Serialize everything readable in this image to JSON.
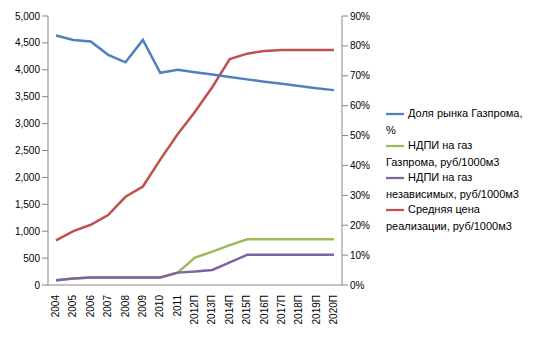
{
  "chart_data": {
    "type": "line",
    "categories": [
      "2004",
      "2005",
      "2006",
      "2007",
      "2008",
      "2009",
      "2010",
      "2011",
      "2012П",
      "2013П",
      "2014П",
      "2015П",
      "2016П",
      "2017П",
      "2018П",
      "2019П",
      "2020П"
    ],
    "series": [
      {
        "name": "Средняя цена реализации, руб/1000м3",
        "color": "#c0504d",
        "values": [
          830,
          1000,
          1120,
          1300,
          1640,
          1830,
          2330,
          2800,
          3220,
          3680,
          4200,
          4300,
          4350,
          4370,
          4370,
          4370,
          4370
        ]
      },
      {
        "name": "НДПИ на газ Газпрома, руб/1000м3",
        "color": "#9bbb59",
        "values": [
          90,
          120,
          140,
          140,
          140,
          140,
          140,
          230,
          510,
          620,
          740,
          850,
          850,
          850,
          850,
          850,
          850
        ]
      },
      {
        "name": "НДПИ на газ независимых, руб/1000м3",
        "color": "#8064a2",
        "values": [
          90,
          120,
          140,
          140,
          140,
          140,
          140,
          230,
          250,
          280,
          420,
          560,
          560,
          560,
          560,
          560,
          560
        ]
      },
      {
        "name": "Доля рынка Газпрома, %",
        "color": "#4f81bd",
        "axis": "y2",
        "values": [
          83.5,
          82,
          81.5,
          77,
          74.5,
          82,
          71,
          72,
          71.2,
          70.4,
          69.6,
          68.8,
          68,
          67.3,
          66.6,
          65.8,
          65.2
        ]
      }
    ],
    "ylim": [
      0,
      5000
    ],
    "yticks": [
      0,
      500,
      {
        "value": 1000,
        "label": "1,000"
      },
      {
        "value": 1500,
        "label": "1,500"
      },
      {
        "value": 2000,
        "label": "2,000"
      },
      {
        "value": 2500,
        "label": "2,500"
      },
      {
        "value": 3000,
        "label": "3,000"
      },
      {
        "value": 3500,
        "label": "3,500"
      },
      {
        "value": 4000,
        "label": "4,000"
      },
      {
        "value": 4500,
        "label": "4,500"
      },
      {
        "value": 5000,
        "label": "5,000"
      }
    ],
    "y2lim": [
      0,
      90
    ],
    "y2ticks": [
      {
        "value": 0,
        "label": "0%"
      },
      {
        "value": 10,
        "label": "10%"
      },
      {
        "value": 20,
        "label": "20%"
      },
      {
        "value": 30,
        "label": "30%"
      },
      {
        "value": 40,
        "label": "40%"
      },
      {
        "value": 50,
        "label": "50%"
      },
      {
        "value": 60,
        "label": "60%"
      },
      {
        "value": 70,
        "label": "70%"
      },
      {
        "value": 80,
        "label": "80%"
      },
      {
        "value": 90,
        "label": "90%"
      }
    ],
    "grid": false,
    "legend": "right"
  }
}
